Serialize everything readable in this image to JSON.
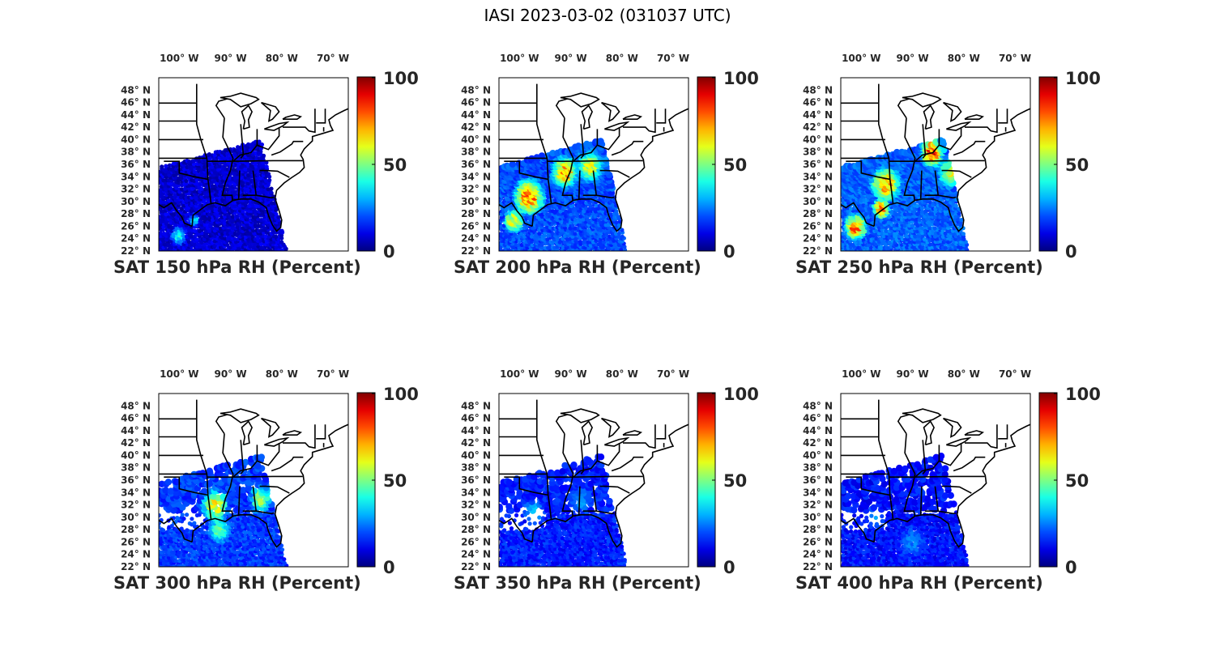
{
  "figure": {
    "title": "IASI 2023-03-02 (031037 UTC)"
  },
  "longitude_ticks": [
    "100° W",
    "90° W",
    "80° W",
    "70° W"
  ],
  "latitude_ticks": [
    "48° N",
    "46° N",
    "44° N",
    "42° N",
    "40° N",
    "38° N",
    "36° N",
    "34° N",
    "32° N",
    "30° N",
    "28° N",
    "26° N",
    "24° N",
    "22° N"
  ],
  "colorbar": {
    "colormap": "jet",
    "ticks": [
      "0",
      "50",
      "100"
    ],
    "range": [
      0,
      100
    ]
  },
  "map": {
    "extent": {
      "lon": [
        -104,
        -67
      ],
      "lat": [
        22,
        50
      ]
    },
    "coastline_color": "#000000"
  },
  "panels": [
    {
      "caption": "SAT 150 hPa RH (Percent)",
      "swath_fraction": 1.0,
      "typical_rh": 8,
      "moist_regions": [
        {
          "lon": -100,
          "lat": 24.5,
          "rh": 45,
          "radius_deg": 1.8
        },
        {
          "lon": -97,
          "lat": 27,
          "rh": 40,
          "radius_deg": 1.2
        }
      ]
    },
    {
      "caption": "SAT 200 hPa RH (Percent)",
      "swath_fraction": 1.0,
      "typical_rh": 20,
      "moist_regions": [
        {
          "lon": -98,
          "lat": 31,
          "rh": 85,
          "radius_deg": 3.5
        },
        {
          "lon": -91,
          "lat": 35,
          "rh": 80,
          "radius_deg": 3.0
        },
        {
          "lon": -86,
          "lat": 36,
          "rh": 65,
          "radius_deg": 3.0
        },
        {
          "lon": -101,
          "lat": 27,
          "rh": 70,
          "radius_deg": 2.2
        }
      ]
    },
    {
      "caption": "SAT 250 hPa RH (Percent)",
      "swath_fraction": 1.0,
      "typical_rh": 22,
      "moist_regions": [
        {
          "lon": -86,
          "lat": 38,
          "rh": 95,
          "radius_deg": 2.5
        },
        {
          "lon": -82,
          "lat": 35,
          "rh": 70,
          "radius_deg": 3.0
        },
        {
          "lon": -95,
          "lat": 33,
          "rh": 80,
          "radius_deg": 3.2
        },
        {
          "lon": -101,
          "lat": 26,
          "rh": 85,
          "radius_deg": 2.4
        },
        {
          "lon": -96,
          "lat": 29,
          "rh": 90,
          "radius_deg": 1.8
        }
      ]
    },
    {
      "caption": "SAT 300 hPa RH (Percent)",
      "swath_fraction": 0.85,
      "typical_rh": 18,
      "moist_regions": [
        {
          "lon": -93,
          "lat": 32,
          "rh": 70,
          "radius_deg": 3.0
        },
        {
          "lon": -84,
          "lat": 33,
          "rh": 60,
          "radius_deg": 2.5
        },
        {
          "lon": -92,
          "lat": 28,
          "rh": 50,
          "radius_deg": 2.5
        }
      ]
    },
    {
      "caption": "SAT 350 hPa RH (Percent)",
      "swath_fraction": 0.75,
      "typical_rh": 15,
      "moist_regions": [
        {
          "lon": -97,
          "lat": 31,
          "rh": 35,
          "radius_deg": 2.5
        },
        {
          "lon": -88,
          "lat": 33,
          "rh": 30,
          "radius_deg": 2.5
        }
      ]
    },
    {
      "caption": "SAT 400 hPa RH (Percent)",
      "swath_fraction": 0.7,
      "typical_rh": 14,
      "moist_regions": [
        {
          "lon": -90,
          "lat": 26,
          "rh": 28,
          "radius_deg": 3.0
        },
        {
          "lon": -97,
          "lat": 30,
          "rh": 30,
          "radius_deg": 2.0
        }
      ]
    }
  ]
}
